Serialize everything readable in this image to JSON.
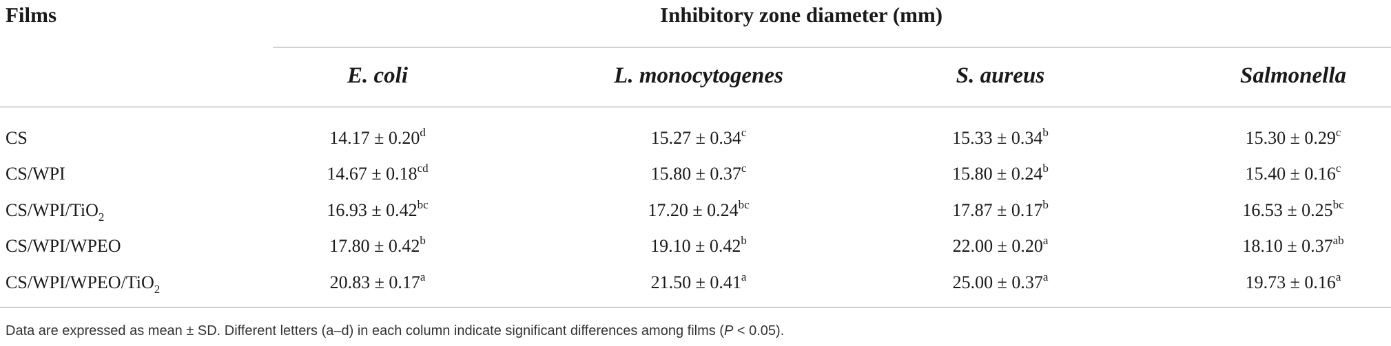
{
  "table": {
    "films_header": "Films",
    "span_header": "Inhibitory zone diameter (mm)",
    "columns": [
      "E. coli",
      "L. monocytogenes",
      "S. aureus",
      "Salmonella"
    ],
    "rows": [
      {
        "film": {
          "main": "CS",
          "sub": "",
          "tail": ""
        },
        "cells": [
          {
            "val": "14.17 ± 0.20",
            "sup": "d"
          },
          {
            "val": "15.27 ± 0.34",
            "sup": "c"
          },
          {
            "val": "15.33 ± 0.34",
            "sup": "b"
          },
          {
            "val": "15.30 ± 0.29",
            "sup": "c"
          }
        ]
      },
      {
        "film": {
          "main": "CS/WPI",
          "sub": "",
          "tail": ""
        },
        "cells": [
          {
            "val": "14.67 ± 0.18",
            "sup": "cd"
          },
          {
            "val": "15.80 ± 0.37",
            "sup": "c"
          },
          {
            "val": "15.80 ± 0.24",
            "sup": "b"
          },
          {
            "val": "15.40 ± 0.16",
            "sup": "c"
          }
        ]
      },
      {
        "film": {
          "main": "CS/WPI/TiO",
          "sub": "2",
          "tail": ""
        },
        "cells": [
          {
            "val": "16.93 ± 0.42",
            "sup": "bc"
          },
          {
            "val": "17.20 ± 0.24",
            "sup": "bc"
          },
          {
            "val": "17.87 ± 0.17",
            "sup": "b"
          },
          {
            "val": "16.53 ± 0.25",
            "sup": "bc"
          }
        ]
      },
      {
        "film": {
          "main": "CS/WPI/WPEO",
          "sub": "",
          "tail": ""
        },
        "cells": [
          {
            "val": "17.80 ± 0.42",
            "sup": "b"
          },
          {
            "val": "19.10 ± 0.42",
            "sup": "b"
          },
          {
            "val": "22.00 ± 0.20",
            "sup": "a"
          },
          {
            "val": "18.10 ± 0.37",
            "sup": "ab"
          }
        ]
      },
      {
        "film": {
          "main": "CS/WPI/WPEO/TiO",
          "sub": "2",
          "tail": ""
        },
        "cells": [
          {
            "val": "20.83 ± 0.17",
            "sup": "a"
          },
          {
            "val": "21.50 ± 0.41",
            "sup": "a"
          },
          {
            "val": "25.00 ± 0.37",
            "sup": "a"
          },
          {
            "val": "19.73 ± 0.16",
            "sup": "a"
          }
        ]
      }
    ],
    "footnote": {
      "before": "Data are expressed as mean ± SD. Different letters (a–d) in each column indicate significant differences among films (",
      "italic": "P",
      "after": " < 0.05)."
    }
  }
}
